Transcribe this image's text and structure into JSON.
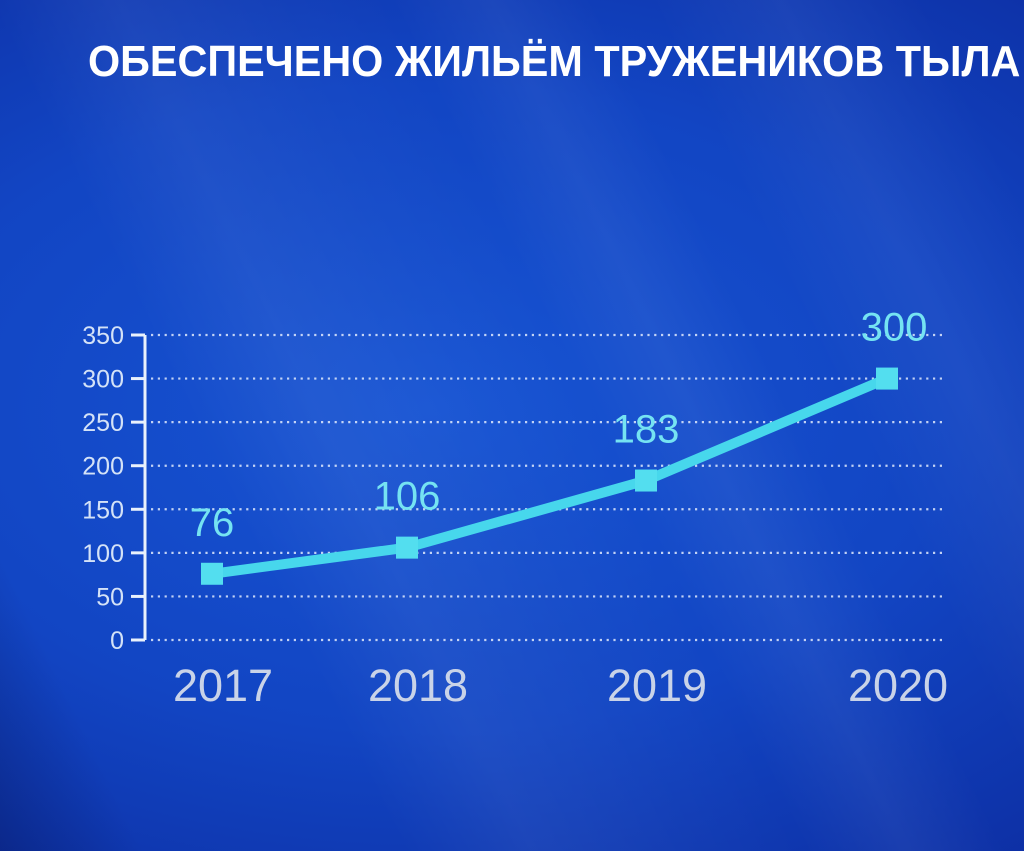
{
  "title": "ОБЕСПЕЧЕНО ЖИЛЬЁМ ТРУЖЕНИКОВ ТЫЛА",
  "chart_data": {
    "type": "line",
    "title": "ОБЕСПЕЧЕНО ЖИЛЬЁМ ТРУЖЕНИКОВ ТЫЛА",
    "categories": [
      "2017",
      "2018",
      "2019",
      "2020"
    ],
    "values": [
      76,
      106,
      183,
      300
    ],
    "data_labels": [
      "76",
      "106",
      "183",
      "300"
    ],
    "xlabel": "",
    "ylabel": "",
    "ylim": [
      0,
      350
    ],
    "yticks": [
      0,
      50,
      100,
      150,
      200,
      250,
      300,
      350
    ],
    "grid": "horizontal-dotted",
    "legend": "none",
    "marker": "square",
    "line_style": "solid-thick",
    "colors": {
      "line": "#47d7ec",
      "marker": "#53deef",
      "data_label": "#75e3f2",
      "axis": "#e9f1fc",
      "grid": "#edf4ff",
      "ytick_label": "#d4e2f7",
      "xtick_label": "#c9d3e8",
      "title": "#ffffff",
      "bg_highlight": "#1754d3",
      "bg_mid": "#1245c3",
      "bg_deep": "#0d2fa4",
      "bg_edge": "#0a1f83"
    }
  }
}
